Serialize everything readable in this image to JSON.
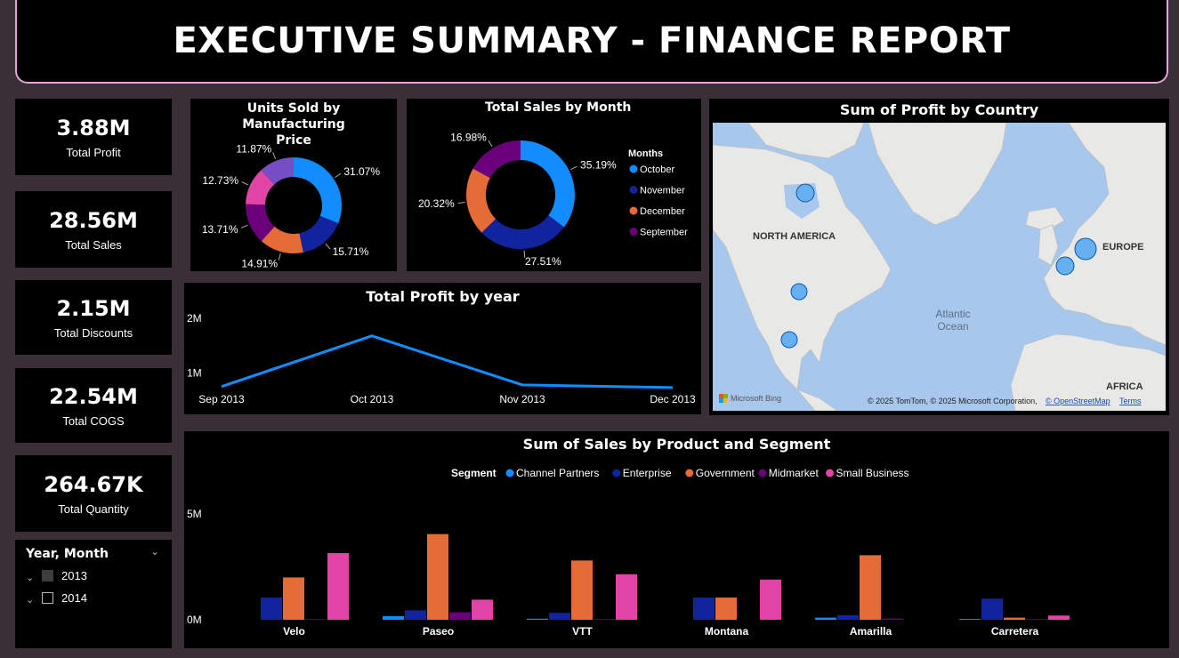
{
  "header": {
    "title": "EXECUTIVE SUMMARY - FINANCE REPORT"
  },
  "kpis": [
    {
      "value": "3.88M",
      "label": "Total Profit"
    },
    {
      "value": "28.56M",
      "label": "Total Sales"
    },
    {
      "value": "2.15M",
      "label": "Total Discounts"
    },
    {
      "value": "22.54M",
      "label": "Total COGS"
    },
    {
      "value": "264.67K",
      "label": "Total Quantity"
    }
  ],
  "slicer": {
    "title": "Year, Month",
    "items": [
      {
        "label": "2013",
        "checked": true
      },
      {
        "label": "2014",
        "checked": false
      }
    ]
  },
  "chart_data": [
    {
      "type": "pie",
      "title": "Units Sold by Manufacturing Price",
      "donut": true,
      "slices": [
        {
          "value": 31.07,
          "label": "31.07%",
          "color": "#118dff"
        },
        {
          "value": 15.71,
          "label": "15.71%",
          "color": "#12239e"
        },
        {
          "value": 14.91,
          "label": "14.91%",
          "color": "#e66c37"
        },
        {
          "value": 13.71,
          "label": "13.71%",
          "color": "#6b007b"
        },
        {
          "value": 12.73,
          "label": "12.73%",
          "color": "#e044a7"
        },
        {
          "value": 11.87,
          "label": "11.87%",
          "color": "#744ec2"
        }
      ]
    },
    {
      "type": "pie",
      "title": "Total Sales by Month",
      "donut": true,
      "legend_title": "Months",
      "legend_position": "right",
      "slices": [
        {
          "name": "October",
          "value": 35.19,
          "label": "35.19%",
          "color": "#118dff"
        },
        {
          "name": "November",
          "value": 27.51,
          "label": "27.51%",
          "color": "#12239e"
        },
        {
          "name": "December",
          "value": 20.32,
          "label": "20.32%",
          "color": "#e66c37"
        },
        {
          "name": "September",
          "value": 16.98,
          "label": "16.98%",
          "color": "#6b007b"
        }
      ]
    },
    {
      "type": "line",
      "title": "Total Profit by year",
      "categories": [
        "Sep 2013",
        "Oct 2013",
        "Nov 2013",
        "Dec 2013"
      ],
      "values": [
        0.75,
        1.68,
        0.78,
        0.73
      ],
      "unit": "M",
      "yticks": [
        {
          "value": 1,
          "label": "1M"
        },
        {
          "value": 2,
          "label": "2M"
        }
      ],
      "ylim": [
        0.5,
        2.1
      ],
      "color": "#118dff",
      "grid": false
    },
    {
      "type": "bar",
      "title": "Sum of Sales by Product and Segment",
      "legend_title": "Segment",
      "legend_position": "top",
      "categories": [
        "Velo",
        "Paseo",
        "VTT",
        "Montana",
        "Amarilla",
        "Carretera"
      ],
      "series": [
        {
          "name": "Channel Partners",
          "color": "#118dff",
          "values": [
            0.0,
            0.17,
            0.05,
            0.0,
            0.1,
            0.04
          ]
        },
        {
          "name": "Enterprise",
          "color": "#12239e",
          "values": [
            1.05,
            0.45,
            0.33,
            1.05,
            0.22,
            1.0
          ]
        },
        {
          "name": "Government",
          "color": "#e66c37",
          "values": [
            2.0,
            4.05,
            2.8,
            1.05,
            3.05,
            0.1
          ]
        },
        {
          "name": "Midmarket",
          "color": "#6b007b",
          "values": [
            0.03,
            0.35,
            0.03,
            0.0,
            0.06,
            0.03
          ]
        },
        {
          "name": "Small Business",
          "color": "#e044a7",
          "values": [
            3.15,
            0.95,
            2.15,
            1.9,
            0.0,
            0.2
          ]
        }
      ],
      "unit": "M",
      "yticks": [
        {
          "value": 0,
          "label": "0M"
        },
        {
          "value": 5,
          "label": "5M"
        }
      ],
      "ylim": [
        0,
        5
      ],
      "grid": false
    }
  ],
  "map": {
    "title": "Sum of Profit by Country",
    "labels": [
      "NORTH AMERICA",
      "EUROPE",
      "AFRICA"
    ],
    "ocean_label_1": "Atlantic",
    "ocean_label_2": "Ocean",
    "attribution": "© 2025 TomTom, © 2025 Microsoft Corporation,",
    "attribution_link": "© OpenStreetMap",
    "terms": "Terms",
    "brand": "Microsoft Bing",
    "points": [
      {
        "name": "Canada"
      },
      {
        "name": "United States of America"
      },
      {
        "name": "Mexico"
      },
      {
        "name": "Germany"
      },
      {
        "name": "France"
      }
    ]
  }
}
